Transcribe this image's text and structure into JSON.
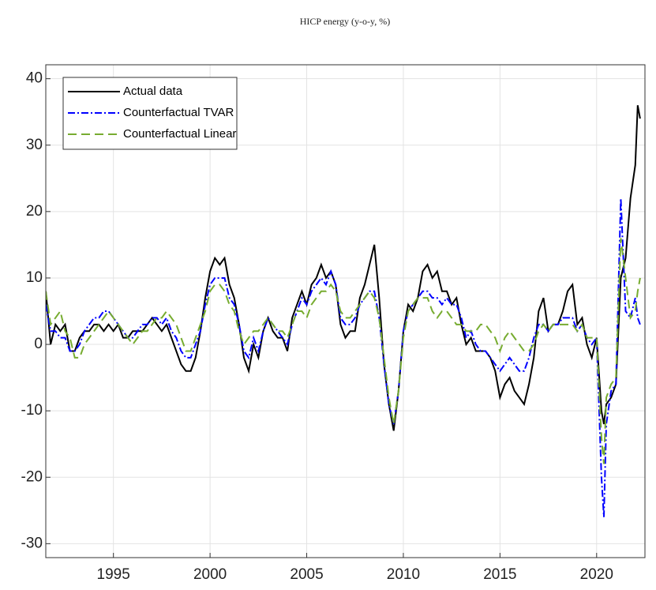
{
  "chart_data": {
    "type": "line",
    "title": "HICP energy (y-o-y, %)",
    "x": [
      1991.5,
      1991.75,
      1992,
      1992.25,
      1992.5,
      1992.75,
      1993,
      1993.25,
      1993.5,
      1993.75,
      1994,
      1994.25,
      1994.5,
      1994.75,
      1995,
      1995.25,
      1995.5,
      1995.75,
      1996,
      1996.25,
      1996.5,
      1996.75,
      1997,
      1997.25,
      1997.5,
      1997.75,
      1998,
      1998.25,
      1998.5,
      1998.75,
      1999,
      1999.25,
      1999.5,
      1999.75,
      2000,
      2000.25,
      2000.5,
      2000.75,
      2001,
      2001.25,
      2001.5,
      2001.75,
      2002,
      2002.25,
      2002.5,
      2002.75,
      2003,
      2003.25,
      2003.5,
      2003.75,
      2004,
      2004.25,
      2004.5,
      2004.75,
      2005,
      2005.25,
      2005.5,
      2005.75,
      2006,
      2006.25,
      2006.5,
      2006.75,
      2007,
      2007.25,
      2007.5,
      2007.75,
      2008,
      2008.25,
      2008.5,
      2008.75,
      2009,
      2009.25,
      2009.5,
      2009.75,
      2010,
      2010.25,
      2010.5,
      2010.75,
      2011,
      2011.25,
      2011.5,
      2011.75,
      2012,
      2012.25,
      2012.5,
      2012.75,
      2013,
      2013.25,
      2013.5,
      2013.75,
      2014,
      2014.25,
      2014.5,
      2014.75,
      2015,
      2015.25,
      2015.5,
      2015.75,
      2016,
      2016.25,
      2016.5,
      2016.75,
      2017,
      2017.25,
      2017.5,
      2017.75,
      2018,
      2018.25,
      2018.5,
      2018.75,
      2019,
      2019.25,
      2019.5,
      2019.75,
      2020,
      2020.25,
      2020.375,
      2020.5,
      2020.75,
      2021,
      2021.25,
      2021.5,
      2021.75,
      2022,
      2022.125,
      2022.25
    ],
    "series": [
      {
        "name": "Actual data",
        "color": "#000000",
        "dash": "solid",
        "values": [
          8,
          0,
          3,
          2,
          3,
          -1,
          -1,
          1,
          2,
          2,
          3,
          3,
          2,
          3,
          2,
          3,
          1,
          1,
          2,
          2,
          2,
          3,
          4,
          3,
          2,
          3,
          1,
          -1,
          -3,
          -4,
          -4,
          -2,
          2,
          7,
          11,
          13,
          12,
          13,
          9,
          7,
          3,
          -2,
          -4,
          0,
          -2,
          2,
          4,
          2,
          1,
          1,
          -1,
          4,
          6,
          8,
          6,
          9,
          10,
          12,
          10,
          11,
          9,
          3,
          1,
          2,
          2,
          7,
          9,
          12,
          15,
          7,
          -3,
          -9,
          -13,
          -7,
          2,
          6,
          5,
          7,
          11,
          12,
          10,
          11,
          8,
          8,
          6,
          7,
          3,
          0,
          1,
          -1,
          -1,
          -1,
          -2,
          -4,
          -8,
          -6,
          -5,
          -7,
          -8,
          -9,
          -6,
          -2,
          5,
          7,
          2,
          3,
          3,
          5,
          8,
          9,
          3,
          4,
          0,
          -2,
          1,
          -10,
          -12,
          -9,
          -8,
          -6,
          10,
          13,
          22,
          27,
          36,
          34
        ]
      },
      {
        "name": "Counterfactual TVAR",
        "color": "#0000ff",
        "dash": "dashdot",
        "values": [
          6,
          2,
          2,
          1,
          1,
          -1,
          -1,
          0,
          2,
          3,
          4,
          4,
          5,
          5,
          4,
          3,
          2,
          1,
          1,
          2,
          3,
          3,
          4,
          4,
          3,
          4,
          2,
          1,
          -1,
          -2,
          -2,
          0,
          2,
          6,
          9,
          10,
          10,
          10,
          7,
          6,
          3,
          -1,
          -2,
          1,
          -1,
          2,
          4,
          3,
          2,
          1,
          0,
          3,
          5,
          7,
          6,
          8,
          9,
          10,
          9,
          11,
          9,
          4,
          3,
          3,
          4,
          6,
          7,
          8,
          8,
          4,
          -3,
          -9,
          -12,
          -7,
          2,
          5,
          6,
          7,
          8,
          8,
          7,
          7,
          6,
          7,
          6,
          6,
          4,
          1,
          2,
          0,
          -1,
          -1,
          -2,
          -3,
          -4,
          -3,
          -2,
          -3,
          -4,
          -4,
          -2,
          1,
          3,
          3,
          2,
          3,
          3,
          4,
          4,
          4,
          2,
          3,
          1,
          0,
          1,
          -20,
          -26,
          -12,
          -7,
          -6,
          22,
          5,
          4,
          7,
          4,
          3
        ]
      },
      {
        "name": "Counterfactual Linear",
        "color": "#77ac30",
        "dash": "dashed",
        "values": [
          8,
          3,
          4,
          5,
          2,
          1,
          -2,
          -2,
          0,
          1,
          2,
          3,
          4,
          5,
          4,
          3,
          2,
          1,
          0,
          1,
          2,
          2,
          3,
          4,
          4,
          5,
          4,
          3,
          1,
          -1,
          -1,
          1,
          3,
          5,
          8,
          9,
          9,
          8,
          6,
          5,
          2,
          0,
          1,
          2,
          2,
          3,
          4,
          3,
          2,
          2,
          1,
          3,
          5,
          5,
          4,
          6,
          7,
          8,
          8,
          9,
          8,
          5,
          4,
          4,
          5,
          6,
          7,
          8,
          7,
          4,
          -2,
          -8,
          -12,
          -7,
          1,
          5,
          6,
          7,
          7,
          7,
          5,
          4,
          5,
          5,
          4,
          3,
          3,
          2,
          2,
          2,
          3,
          3,
          2,
          1,
          -1,
          1,
          2,
          1,
          0,
          -1,
          -1,
          0,
          2,
          3,
          2,
          3,
          3,
          3,
          3,
          3,
          2,
          3,
          1,
          1,
          1,
          -14,
          -18,
          -8,
          -6,
          -5,
          16,
          10,
          4,
          5,
          8,
          10
        ]
      }
    ],
    "xlim": [
      1991.5,
      2022.5
    ],
    "ylim": [
      -32.1,
      42.1
    ],
    "xticks": [
      1995,
      2000,
      2005,
      2010,
      2015,
      2020
    ],
    "yticks": [
      -30,
      -20,
      -10,
      0,
      10,
      20,
      30,
      40
    ],
    "grid": true,
    "legend": "upper left"
  }
}
